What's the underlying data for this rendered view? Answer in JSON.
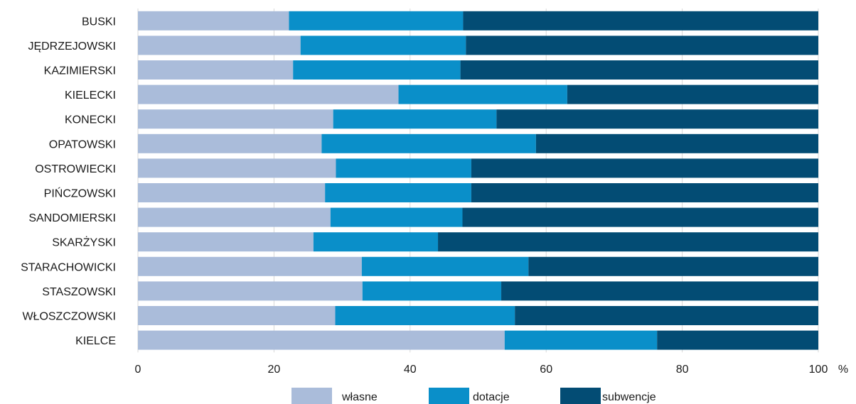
{
  "chart_data": {
    "type": "bar",
    "orientation": "horizontal",
    "stacked": true,
    "categories": [
      "BUSKI",
      "JĘDRZEJOWSKI",
      "KAZIMIERSKI",
      "KIELECKI",
      "KONECKI",
      "OPATOWSKI",
      "OSTROWIECKI",
      "PIŃCZOWSKI",
      "SANDOMIERSKI",
      "SKARŻYSKI",
      "STARACHOWICKI",
      "STASZOWSKI",
      "WŁOSZCZOWSKI",
      "KIELCE"
    ],
    "series": [
      {
        "name": "własne",
        "color": "#aabcda",
        "values": [
          22.2,
          23.9,
          22.8,
          38.3,
          28.7,
          27.0,
          29.1,
          27.5,
          28.3,
          25.8,
          32.9,
          33.0,
          29.0,
          53.9
        ]
      },
      {
        "name": "dotacje",
        "color": "#0a8fc9",
        "values": [
          25.6,
          24.3,
          24.6,
          24.8,
          24.0,
          31.5,
          19.9,
          21.5,
          19.4,
          18.3,
          24.5,
          20.4,
          26.4,
          22.4
        ]
      },
      {
        "name": "subwencje",
        "color": "#034c74",
        "values": [
          52.2,
          51.8,
          52.6,
          36.9,
          47.3,
          41.5,
          51.0,
          51.0,
          52.3,
          55.9,
          42.6,
          46.6,
          44.6,
          23.7
        ]
      }
    ],
    "xlim": [
      0,
      100
    ],
    "xticks": [
      "0",
      "20",
      "40",
      "60",
      "80",
      "100"
    ],
    "x_unit": "%",
    "grid": "vertical",
    "legend": "bottom"
  }
}
